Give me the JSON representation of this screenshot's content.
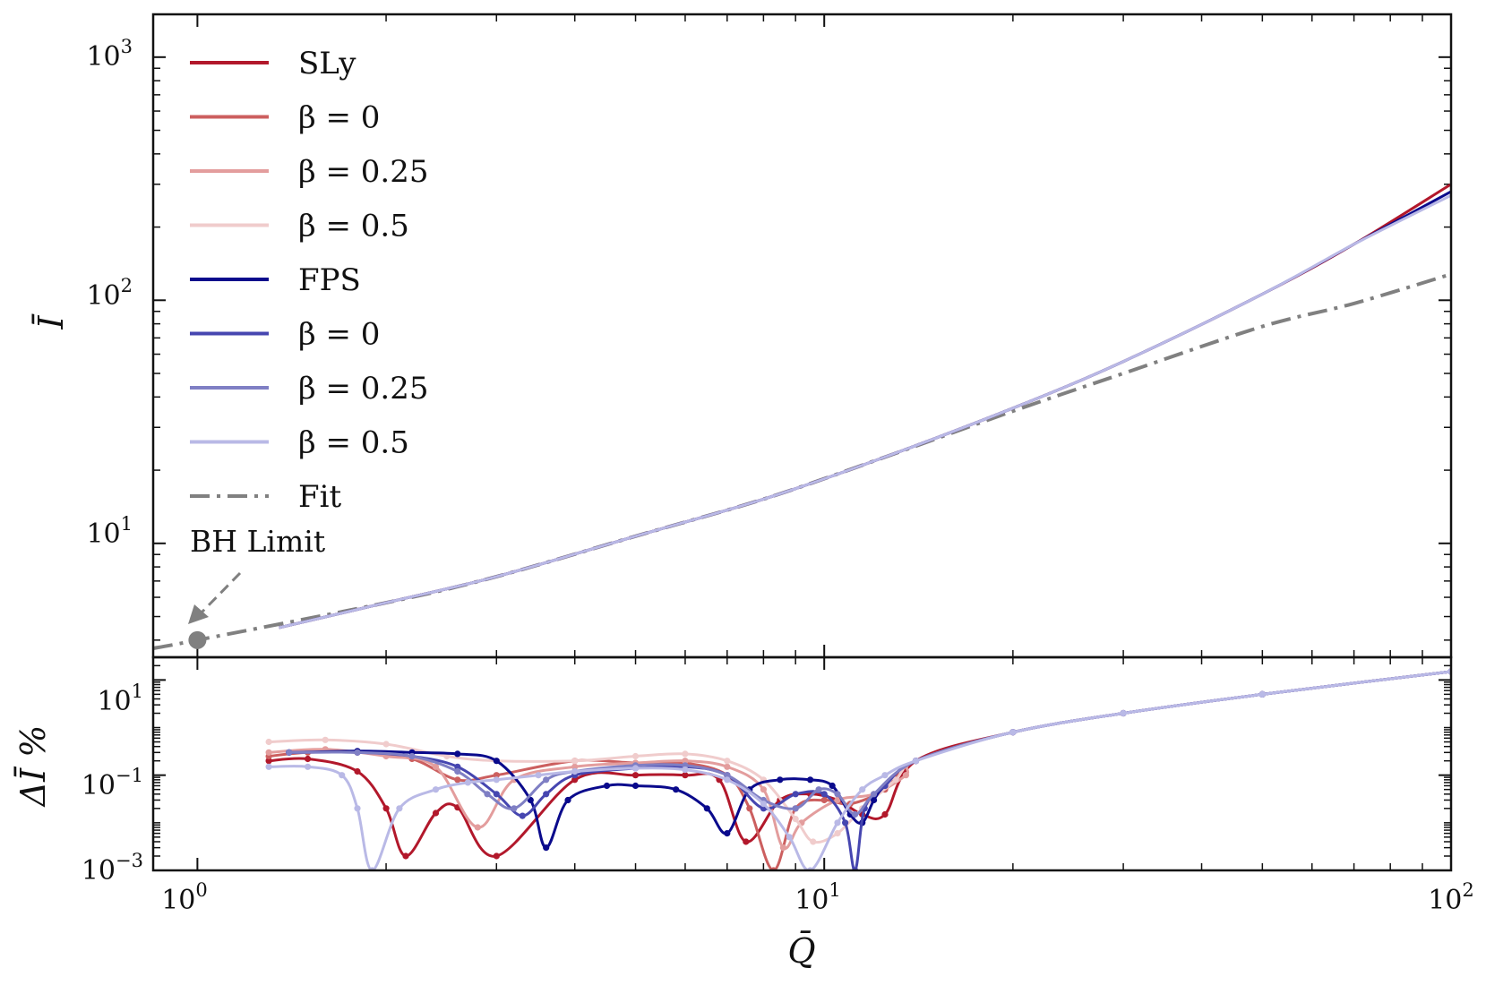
{
  "chart_data": [
    {
      "type": "line",
      "panel": "main",
      "ylabel": "Ī",
      "xscale": "log",
      "yscale": "log",
      "xlim": [
        0.85,
        100
      ],
      "ylim": [
        3.4,
        1500
      ],
      "xticks": [
        {
          "base": "10",
          "exp": "0",
          "value": 1
        },
        {
          "base": "10",
          "exp": "1",
          "value": 10
        },
        {
          "base": "10",
          "exp": "2",
          "value": 100
        }
      ],
      "yticks": [
        {
          "base": "10",
          "exp": "1",
          "value": 10
        },
        {
          "base": "10",
          "exp": "2",
          "value": 100
        },
        {
          "base": "10",
          "exp": "3",
          "value": 1000
        }
      ],
      "legend_position": "top-left",
      "legend": [
        {
          "label": "SLy",
          "style": "solid",
          "color": "#b2182b"
        },
        {
          "label": "β = 0",
          "style": "solid",
          "color": "#cc5f5f"
        },
        {
          "label": "β = 0.25",
          "style": "solid",
          "color": "#e39d9d"
        },
        {
          "label": "β = 0.5",
          "style": "solid",
          "color": "#f0cccc"
        },
        {
          "label": "FPS",
          "style": "solid",
          "color": "#0a0a8c"
        },
        {
          "label": "β = 0",
          "style": "solid",
          "color": "#4646b0"
        },
        {
          "label": "β = 0.25",
          "style": "solid",
          "color": "#7f7fc4"
        },
        {
          "label": "β = 0.5",
          "style": "solid",
          "color": "#b9b9e6"
        },
        {
          "label": "Fit",
          "style": "dash-dot",
          "color": "#808080"
        }
      ],
      "annotation": {
        "text": "BH Limit",
        "x": 1.0,
        "y": 4.0
      },
      "curves": [
        {
          "name": "SLy",
          "color": "#b2182b",
          "x": [
            1.35,
            2,
            3,
            5,
            8,
            12,
            20,
            30,
            50,
            70,
            100
          ],
          "y": [
            4.5,
            5.7,
            7.3,
            10.7,
            15.2,
            21.8,
            36,
            56,
            106,
            170,
            300
          ]
        },
        {
          "name": "FPS",
          "color": "#0a0a8c",
          "x": [
            1.35,
            2,
            3,
            5,
            8,
            12,
            20,
            30,
            50,
            70,
            100
          ],
          "y": [
            4.5,
            5.7,
            7.3,
            10.7,
            15.2,
            21.8,
            36,
            56,
            106,
            170,
            280
          ]
        },
        {
          "name": "β = 0.5",
          "color": "#b9b9e6",
          "x": [
            1.35,
            2,
            3,
            5,
            8,
            12,
            20,
            30,
            50,
            70,
            100
          ],
          "y": [
            4.5,
            5.7,
            7.3,
            10.7,
            15.2,
            21.8,
            36,
            56,
            106,
            170,
            270
          ]
        }
      ],
      "fit": {
        "name": "Fit",
        "color": "#808080",
        "x": [
          0.85,
          1,
          2,
          3,
          5,
          8,
          12,
          20,
          30,
          50,
          70,
          100
        ],
        "y": [
          3.7,
          4.0,
          5.7,
          7.3,
          10.7,
          15.2,
          21.8,
          35,
          50,
          78,
          97,
          128
        ]
      }
    },
    {
      "type": "line",
      "panel": "residual",
      "xlabel": "Q̄",
      "ylabel": "ΔĪ %",
      "xscale": "log",
      "yscale": "log",
      "xlim": [
        0.85,
        100
      ],
      "ylim": [
        0.001,
        30
      ],
      "xticks": [
        {
          "base": "10",
          "exp": "0",
          "value": 1
        },
        {
          "base": "10",
          "exp": "1",
          "value": 10
        },
        {
          "base": "10",
          "exp": "2",
          "value": 100
        }
      ],
      "yticks": [
        {
          "base": "10",
          "exp": "−3",
          "value": 0.001
        },
        {
          "base": "10",
          "exp": "−1",
          "value": 0.1
        },
        {
          "base": "10",
          "exp": "1",
          "value": 10
        }
      ],
      "series": [
        {
          "name": "SLy",
          "color": "#b2182b",
          "x": [
            1.3,
            1.5,
            1.8,
            2.0,
            2.15,
            2.4,
            2.6,
            3.0,
            4.0,
            5.0,
            6.0,
            6.8,
            7.5,
            8.5,
            9.5,
            10.5,
            11.5,
            12.5,
            14,
            20,
            30,
            50,
            100
          ],
          "y": [
            0.2,
            0.22,
            0.12,
            0.02,
            0.002,
            0.016,
            0.021,
            0.002,
            0.08,
            0.1,
            0.1,
            0.08,
            0.004,
            0.03,
            0.04,
            0.03,
            0.015,
            0.015,
            0.2,
            0.8,
            2,
            5,
            15
          ]
        },
        {
          "name": "β = 0",
          "color": "#cc5f5f",
          "x": [
            1.3,
            1.5,
            1.8,
            2.2,
            2.6,
            3.0,
            4.0,
            5.0,
            6.0,
            7.0,
            7.6,
            8.3,
            9.0,
            10.0,
            11.0,
            12.5,
            14,
            20,
            30,
            50,
            100
          ],
          "y": [
            0.25,
            0.3,
            0.3,
            0.22,
            0.08,
            0.1,
            0.2,
            0.18,
            0.18,
            0.1,
            0.02,
            0.001,
            0.02,
            0.03,
            0.025,
            0.05,
            0.2,
            0.8,
            2,
            5,
            15
          ]
        },
        {
          "name": "β = 0.25",
          "color": "#e39d9d",
          "x": [
            1.3,
            1.6,
            2.0,
            2.4,
            2.8,
            3.2,
            4.0,
            5.0,
            6.0,
            7.0,
            8.0,
            8.6,
            9.2,
            10.5,
            12.0,
            13.5,
            14,
            20,
            30,
            50,
            100
          ],
          "y": [
            0.3,
            0.35,
            0.25,
            0.15,
            0.008,
            0.08,
            0.15,
            0.18,
            0.2,
            0.15,
            0.05,
            0.003,
            0.01,
            0.03,
            0.04,
            0.1,
            0.2,
            0.8,
            2,
            5,
            15
          ]
        },
        {
          "name": "β = 0.5",
          "color": "#f0cccc",
          "x": [
            1.3,
            1.6,
            2.0,
            2.5,
            3.0,
            4.0,
            5.0,
            6.0,
            7.0,
            8.0,
            9.0,
            9.6,
            10.5,
            11.5,
            13,
            14,
            20,
            30,
            50,
            100
          ],
          "y": [
            0.5,
            0.55,
            0.45,
            0.25,
            0.2,
            0.2,
            0.25,
            0.28,
            0.2,
            0.08,
            0.012,
            0.004,
            0.006,
            0.02,
            0.08,
            0.2,
            0.8,
            2,
            5,
            15
          ]
        },
        {
          "name": "FPS",
          "color": "#0a0a8c",
          "x": [
            1.4,
            1.8,
            2.2,
            2.6,
            3.0,
            3.4,
            3.6,
            3.9,
            4.5,
            5.0,
            5.8,
            6.5,
            7.0,
            7.6,
            8.5,
            9.5,
            10.3,
            11.0,
            11.5,
            12.0,
            12.5,
            14,
            20,
            30,
            50,
            100
          ],
          "y": [
            0.3,
            0.32,
            0.3,
            0.28,
            0.2,
            0.03,
            0.003,
            0.03,
            0.06,
            0.06,
            0.05,
            0.02,
            0.006,
            0.05,
            0.08,
            0.08,
            0.06,
            0.015,
            0.01,
            0.03,
            0.06,
            0.2,
            0.8,
            2,
            5,
            15
          ]
        },
        {
          "name": "β = 0",
          "color": "#4646b0",
          "x": [
            1.4,
            1.8,
            2.2,
            2.6,
            3.0,
            3.3,
            3.6,
            4.0,
            5.0,
            6.0,
            7.0,
            8.0,
            9.0,
            10.0,
            10.8,
            11.2,
            11.6,
            12.5,
            14,
            20,
            30,
            50,
            100
          ],
          "y": [
            0.3,
            0.3,
            0.25,
            0.15,
            0.04,
            0.014,
            0.04,
            0.1,
            0.14,
            0.15,
            0.1,
            0.02,
            0.04,
            0.04,
            0.01,
            0.001,
            0.02,
            0.06,
            0.2,
            0.8,
            2,
            5,
            15
          ]
        },
        {
          "name": "β = 0.25",
          "color": "#7f7fc4",
          "x": [
            1.4,
            1.8,
            2.2,
            2.6,
            2.9,
            3.2,
            3.6,
            4.0,
            5.0,
            6.0,
            7.0,
            8.0,
            9.0,
            9.8,
            10.5,
            11.2,
            12.0,
            14,
            20,
            30,
            50,
            100
          ],
          "y": [
            0.3,
            0.3,
            0.25,
            0.12,
            0.04,
            0.02,
            0.08,
            0.12,
            0.16,
            0.16,
            0.1,
            0.03,
            0.02,
            0.05,
            0.04,
            0.015,
            0.04,
            0.2,
            0.8,
            2,
            5,
            15
          ]
        },
        {
          "name": "β = 0.5",
          "color": "#b9b9e6",
          "x": [
            1.3,
            1.5,
            1.7,
            1.8,
            1.9,
            2.1,
            2.4,
            2.7,
            3.0,
            3.5,
            4.0,
            5.0,
            6.0,
            7.0,
            8.0,
            8.8,
            9.5,
            10.5,
            11.5,
            12.5,
            14,
            20,
            30,
            50,
            100
          ],
          "y": [
            0.15,
            0.15,
            0.1,
            0.02,
            0.001,
            0.02,
            0.05,
            0.07,
            0.08,
            0.1,
            0.12,
            0.14,
            0.13,
            0.08,
            0.025,
            0.005,
            0.001,
            0.01,
            0.05,
            0.1,
            0.2,
            0.8,
            2,
            5,
            15
          ]
        }
      ]
    }
  ]
}
